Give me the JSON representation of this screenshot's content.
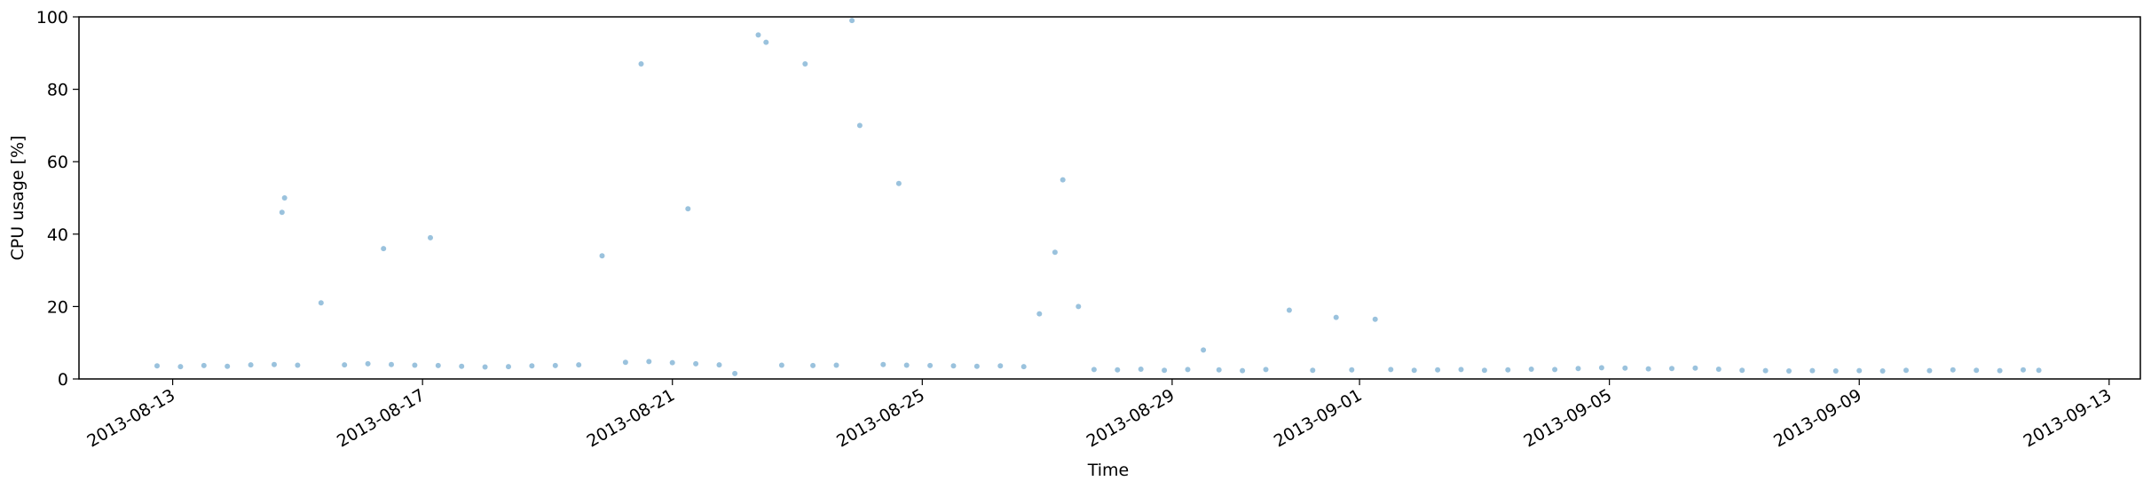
{
  "chart_data": {
    "type": "scatter",
    "title": "",
    "xlabel": "Time",
    "ylabel": "CPU usage [%]",
    "x_type": "date",
    "xlim": [
      "2013-08-11T12:00",
      "2013-09-13T12:00"
    ],
    "ylim": [
      0,
      100
    ],
    "grid": false,
    "x_ticks": [
      "2013-08-13",
      "2013-08-17",
      "2013-08-21",
      "2013-08-25",
      "2013-08-29",
      "2013-09-01",
      "2013-09-05",
      "2013-09-09",
      "2013-09-13"
    ],
    "y_ticks": [
      0,
      20,
      40,
      60,
      80,
      100
    ],
    "marker_color": "#1f77b4",
    "marker_alpha": 0.45,
    "series": [
      {
        "points": [
          [
            "2013-08-12T18:00",
            3.6
          ],
          [
            "2013-08-13T03:00",
            3.4
          ],
          [
            "2013-08-13T12:00",
            3.7
          ],
          [
            "2013-08-13T21:00",
            3.5
          ],
          [
            "2013-08-14T06:00",
            3.9
          ],
          [
            "2013-08-14T15:00",
            4.0
          ],
          [
            "2013-08-14T18:00",
            46
          ],
          [
            "2013-08-14T19:00",
            50
          ],
          [
            "2013-08-15T00:00",
            3.8
          ],
          [
            "2013-08-15T09:00",
            21
          ],
          [
            "2013-08-15T18:00",
            3.9
          ],
          [
            "2013-08-16T03:00",
            4.2
          ],
          [
            "2013-08-16T09:00",
            36
          ],
          [
            "2013-08-16T12:00",
            4.0
          ],
          [
            "2013-08-16T21:00",
            3.8
          ],
          [
            "2013-08-17T03:00",
            39
          ],
          [
            "2013-08-17T06:00",
            3.7
          ],
          [
            "2013-08-17T15:00",
            3.5
          ],
          [
            "2013-08-18T00:00",
            3.3
          ],
          [
            "2013-08-18T09:00",
            3.4
          ],
          [
            "2013-08-18T18:00",
            3.6
          ],
          [
            "2013-08-19T03:00",
            3.7
          ],
          [
            "2013-08-19T12:00",
            3.9
          ],
          [
            "2013-08-19T21:00",
            34
          ],
          [
            "2013-08-20T06:00",
            4.6
          ],
          [
            "2013-08-20T12:00",
            87
          ],
          [
            "2013-08-20T15:00",
            4.8
          ],
          [
            "2013-08-21T00:00",
            4.5
          ],
          [
            "2013-08-21T06:00",
            47
          ],
          [
            "2013-08-21T09:00",
            4.2
          ],
          [
            "2013-08-21T18:00",
            3.9
          ],
          [
            "2013-08-22T00:00",
            1.5
          ],
          [
            "2013-08-22T09:00",
            95
          ],
          [
            "2013-08-22T12:00",
            93
          ],
          [
            "2013-08-22T18:00",
            3.8
          ],
          [
            "2013-08-23T03:00",
            87
          ],
          [
            "2013-08-23T06:00",
            3.7
          ],
          [
            "2013-08-23T15:00",
            3.8
          ],
          [
            "2013-08-23T21:00",
            99
          ],
          [
            "2013-08-24T00:00",
            70
          ],
          [
            "2013-08-24T09:00",
            4.0
          ],
          [
            "2013-08-24T15:00",
            54
          ],
          [
            "2013-08-24T18:00",
            3.8
          ],
          [
            "2013-08-25T03:00",
            3.7
          ],
          [
            "2013-08-25T12:00",
            3.6
          ],
          [
            "2013-08-25T21:00",
            3.5
          ],
          [
            "2013-08-26T06:00",
            3.6
          ],
          [
            "2013-08-26T15:00",
            3.4
          ],
          [
            "2013-08-26T21:00",
            18
          ],
          [
            "2013-08-27T03:00",
            35
          ],
          [
            "2013-08-27T06:00",
            55
          ],
          [
            "2013-08-27T12:00",
            20
          ],
          [
            "2013-08-27T18:00",
            2.6
          ],
          [
            "2013-08-28T03:00",
            2.5
          ],
          [
            "2013-08-28T12:00",
            2.7
          ],
          [
            "2013-08-28T21:00",
            2.4
          ],
          [
            "2013-08-29T06:00",
            2.6
          ],
          [
            "2013-08-29T12:00",
            8
          ],
          [
            "2013-08-29T18:00",
            2.5
          ],
          [
            "2013-08-30T03:00",
            2.3
          ],
          [
            "2013-08-30T12:00",
            2.6
          ],
          [
            "2013-08-30T21:00",
            19
          ],
          [
            "2013-08-31T06:00",
            2.4
          ],
          [
            "2013-08-31T15:00",
            17
          ],
          [
            "2013-08-31T21:00",
            2.5
          ],
          [
            "2013-09-01T06:00",
            16.5
          ],
          [
            "2013-09-01T12:00",
            2.6
          ],
          [
            "2013-09-01T21:00",
            2.4
          ],
          [
            "2013-09-02T06:00",
            2.5
          ],
          [
            "2013-09-02T15:00",
            2.6
          ],
          [
            "2013-09-03T00:00",
            2.4
          ],
          [
            "2013-09-03T09:00",
            2.5
          ],
          [
            "2013-09-03T18:00",
            2.7
          ],
          [
            "2013-09-04T03:00",
            2.6
          ],
          [
            "2013-09-04T12:00",
            2.9
          ],
          [
            "2013-09-04T21:00",
            3.1
          ],
          [
            "2013-09-05T06:00",
            3.0
          ],
          [
            "2013-09-05T15:00",
            2.8
          ],
          [
            "2013-09-06T00:00",
            2.9
          ],
          [
            "2013-09-06T09:00",
            3.0
          ],
          [
            "2013-09-06T18:00",
            2.7
          ],
          [
            "2013-09-07T03:00",
            2.4
          ],
          [
            "2013-09-07T12:00",
            2.3
          ],
          [
            "2013-09-07T21:00",
            2.2
          ],
          [
            "2013-09-08T06:00",
            2.3
          ],
          [
            "2013-09-08T15:00",
            2.2
          ],
          [
            "2013-09-09T00:00",
            2.3
          ],
          [
            "2013-09-09T09:00",
            2.2
          ],
          [
            "2013-09-09T18:00",
            2.4
          ],
          [
            "2013-09-10T03:00",
            2.3
          ],
          [
            "2013-09-10T12:00",
            2.5
          ],
          [
            "2013-09-10T21:00",
            2.4
          ],
          [
            "2013-09-11T06:00",
            2.3
          ],
          [
            "2013-09-11T15:00",
            2.5
          ],
          [
            "2013-09-11T21:00",
            2.4
          ]
        ]
      }
    ]
  }
}
